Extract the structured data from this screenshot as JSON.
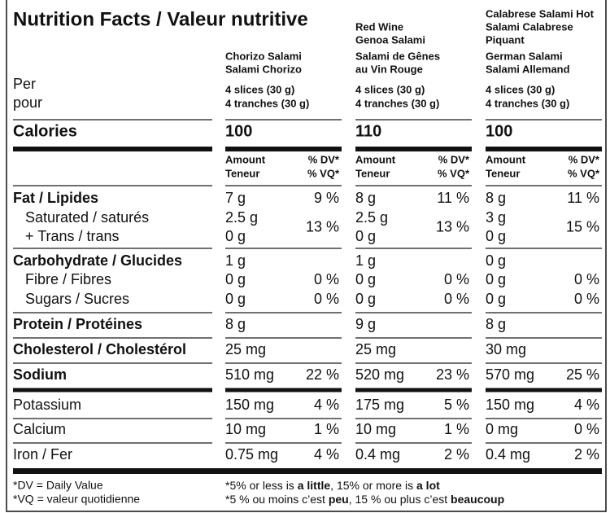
{
  "title": "Nutrition Facts / Valeur nutritive",
  "per": [
    "Per",
    "pour"
  ],
  "calories_label": "Calories",
  "amount_header": [
    "Amount",
    "Teneur"
  ],
  "dv_header": [
    "% DV*",
    "% VQ*"
  ],
  "products": [
    {
      "top_lines": [],
      "bottom_lines": [
        "Chorizo Salami",
        "Salami Chorizo"
      ],
      "serving": [
        "4 slices (30 g)",
        "4 tranches (30 g)"
      ],
      "calories": "100"
    },
    {
      "top_lines": [
        "Red Wine",
        "Genoa Salami"
      ],
      "bottom_lines": [
        "Salami de Gênes",
        "au Vin Rouge"
      ],
      "serving": [
        "4 slices (30 g)",
        "4 tranches (30 g)"
      ],
      "calories": "110"
    },
    {
      "top_lines": [
        "Calabrese Salami Hot",
        "Salami Calabrese",
        "Piquant"
      ],
      "bottom_lines": [
        "German Salami",
        "Salami Allemand"
      ],
      "serving": [
        "4 slices (30 g)",
        "4 tranches (30 g)"
      ],
      "calories": "100"
    }
  ],
  "rows": [
    {
      "label": "Fat / Lipides",
      "cells": [
        {
          "amount": "7 g",
          "dv": "9 %"
        },
        {
          "amount": "8 g",
          "dv": "11 %"
        },
        {
          "amount": "8 g",
          "dv": "11 %"
        }
      ]
    },
    {
      "label": [
        "Saturated / saturés",
        "+ Trans / trans"
      ],
      "cells": [
        {
          "amount": [
            "2.5 g",
            "0 g"
          ],
          "dv": "13 %"
        },
        {
          "amount": [
            "2.5 g",
            "0 g"
          ],
          "dv": "13 %"
        },
        {
          "amount": [
            "3 g",
            "0 g"
          ],
          "dv": "15 %"
        }
      ]
    },
    {
      "label": "Carbohydrate / Glucides",
      "cells": [
        {
          "amount": "1 g"
        },
        {
          "amount": "1 g"
        },
        {
          "amount": "0 g"
        }
      ]
    },
    {
      "label": "Fibre / Fibres",
      "cells": [
        {
          "amount": "0 g",
          "dv": "0 %"
        },
        {
          "amount": "0 g",
          "dv": "0 %"
        },
        {
          "amount": "0 g",
          "dv": "0 %"
        }
      ]
    },
    {
      "label": "Sugars / Sucres",
      "cells": [
        {
          "amount": "0 g",
          "dv": "0 %"
        },
        {
          "amount": "0 g",
          "dv": "0 %"
        },
        {
          "amount": "0 g",
          "dv": "0 %"
        }
      ]
    },
    {
      "label": "Protein / Protéines",
      "cells": [
        {
          "amount": "8 g"
        },
        {
          "amount": "9 g"
        },
        {
          "amount": "8 g"
        }
      ]
    },
    {
      "label": "Cholesterol / Cholestérol",
      "cells": [
        {
          "amount": "25 mg"
        },
        {
          "amount": "25 mg"
        },
        {
          "amount": "30 mg"
        }
      ]
    },
    {
      "label": "Sodium",
      "cells": [
        {
          "amount": "510 mg",
          "dv": "22 %"
        },
        {
          "amount": "520 mg",
          "dv": "23 %"
        },
        {
          "amount": "570 mg",
          "dv": "25 %"
        }
      ]
    },
    {
      "label": "Potassium",
      "cells": [
        {
          "amount": "150 mg",
          "dv": "4 %"
        },
        {
          "amount": "175 mg",
          "dv": "5 %"
        },
        {
          "amount": "150 mg",
          "dv": "4 %"
        }
      ]
    },
    {
      "label": "Calcium",
      "cells": [
        {
          "amount": "10 mg",
          "dv": "1 %"
        },
        {
          "amount": "10 mg",
          "dv": "1 %"
        },
        {
          "amount": "0 mg",
          "dv": "0 %"
        }
      ]
    },
    {
      "label": "Iron / Fer",
      "cells": [
        {
          "amount": "0.75 mg",
          "dv": "4 %"
        },
        {
          "amount": "0.4 mg",
          "dv": "2 %"
        },
        {
          "amount": "0.4 mg",
          "dv": "2 %"
        }
      ]
    }
  ],
  "footer_left": [
    "*DV = Daily Value",
    "*VQ = valeur quotidienne"
  ],
  "footer_right": [
    [
      "*5% or less is ",
      "a little",
      ", 15% or more is ",
      "a lot"
    ],
    [
      "*5 % ou moins c’est ",
      "peu",
      ", 15 % ou plus c’est ",
      "beaucoup"
    ]
  ]
}
